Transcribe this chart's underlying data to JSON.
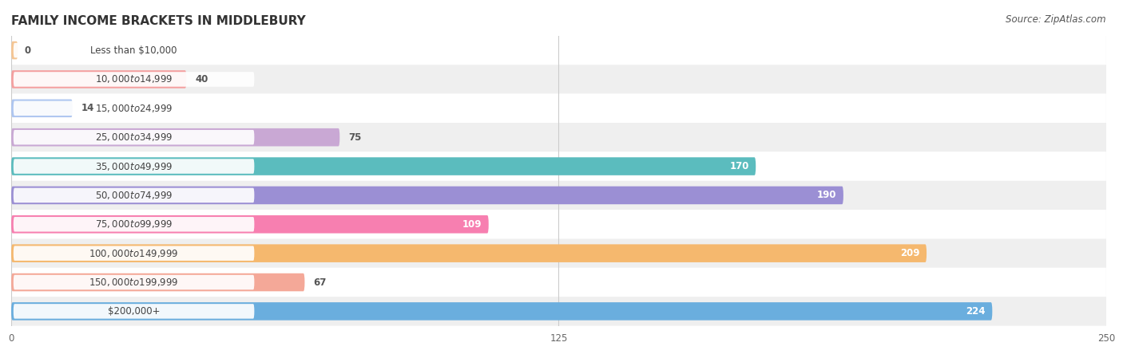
{
  "title": "FAMILY INCOME BRACKETS IN MIDDLEBURY",
  "source": "Source: ZipAtlas.com",
  "categories": [
    "Less than $10,000",
    "$10,000 to $14,999",
    "$15,000 to $24,999",
    "$25,000 to $34,999",
    "$35,000 to $49,999",
    "$50,000 to $74,999",
    "$75,000 to $99,999",
    "$100,000 to $149,999",
    "$150,000 to $199,999",
    "$200,000+"
  ],
  "values": [
    0,
    40,
    14,
    75,
    170,
    190,
    109,
    209,
    67,
    224
  ],
  "bar_colors": [
    "#f5c592",
    "#f4a0a0",
    "#aec6f0",
    "#c9a8d4",
    "#5bbcbe",
    "#9b8fd4",
    "#f77fb0",
    "#f5b86e",
    "#f4a898",
    "#6aaede"
  ],
  "xlim": [
    0,
    250
  ],
  "xticks": [
    0,
    125,
    250
  ],
  "bar_height": 0.62,
  "background_color": "#f7f7f7",
  "title_fontsize": 11,
  "source_fontsize": 8.5,
  "label_fontsize": 8.5,
  "value_fontsize": 8.5,
  "ytick_fontsize": 8.5
}
